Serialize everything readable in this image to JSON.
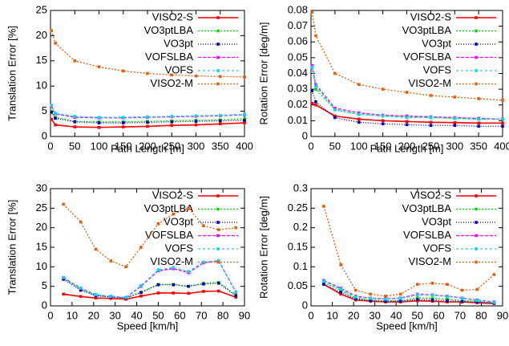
{
  "chart_data": [
    {
      "type": "line",
      "xlabel": "Path Length [m]",
      "ylabel": "Translation Error [%]",
      "x": [
        2,
        10,
        50,
        100,
        150,
        200,
        250,
        300,
        350,
        400
      ],
      "xlim": [
        0,
        400
      ],
      "xticks": [
        0,
        50,
        100,
        150,
        200,
        250,
        300,
        350,
        400
      ],
      "ylim": [
        0,
        25
      ],
      "yticks": [
        0,
        5,
        10,
        15,
        20,
        25
      ],
      "legend": "top-right",
      "series": [
        {
          "name": "VISO2-S",
          "color": "#ff0000",
          "values": [
            3.4,
            2.3,
            1.9,
            1.8,
            1.9,
            2.0,
            2.2,
            2.3,
            2.5,
            2.7
          ]
        },
        {
          "name": "VO3ptLBA",
          "color": "#00e000",
          "values": [
            5.0,
            3.8,
            3.0,
            2.9,
            2.9,
            3.0,
            3.1,
            3.2,
            3.3,
            3.5
          ]
        },
        {
          "name": "VO3pt",
          "color": "#0000b0",
          "values": [
            4.8,
            3.6,
            2.9,
            2.7,
            2.7,
            2.8,
            2.9,
            3.0,
            3.1,
            3.2
          ]
        },
        {
          "name": "VOFSLBA",
          "color": "#ff00ff",
          "values": [
            6.0,
            4.5,
            3.8,
            3.7,
            3.7,
            3.8,
            3.9,
            4.0,
            4.1,
            4.3
          ]
        },
        {
          "name": "VOFS",
          "color": "#00d8ff",
          "values": [
            6.2,
            4.6,
            4.0,
            3.8,
            3.8,
            3.9,
            4.0,
            4.1,
            4.2,
            4.4
          ]
        },
        {
          "name": "VISO2-M",
          "color": "#e06010",
          "values": [
            21,
            18.5,
            15,
            13.8,
            13,
            12.5,
            12.2,
            12,
            11.9,
            11.8
          ]
        }
      ]
    },
    {
      "type": "line",
      "xlabel": "Path Length [m]",
      "ylabel": "Rotation Error [deg/m]",
      "x": [
        2,
        10,
        50,
        100,
        150,
        200,
        250,
        300,
        350,
        400
      ],
      "xlim": [
        0,
        400
      ],
      "xticks": [
        0,
        50,
        100,
        150,
        200,
        250,
        300,
        350,
        400
      ],
      "ylim": [
        0,
        0.08
      ],
      "yticks": [
        0,
        0.01,
        0.02,
        0.03,
        0.04,
        0.05,
        0.06,
        0.07,
        0.08
      ],
      "legend": "top-right",
      "series": [
        {
          "name": "VISO2-S",
          "color": "#ff0000",
          "values": [
            0.021,
            0.02,
            0.013,
            0.011,
            0.01,
            0.0095,
            0.009,
            0.0088,
            0.0085,
            0.0085
          ]
        },
        {
          "name": "VO3ptLBA",
          "color": "#00e000",
          "values": [
            0.045,
            0.03,
            0.017,
            0.014,
            0.013,
            0.0125,
            0.012,
            0.0115,
            0.011,
            0.011
          ]
        },
        {
          "name": "VO3pt",
          "color": "#0000b0",
          "values": [
            0.029,
            0.022,
            0.012,
            0.009,
            0.008,
            0.0075,
            0.007,
            0.007,
            0.0065,
            0.0065
          ]
        },
        {
          "name": "VOFSLBA",
          "color": "#ff00ff",
          "values": [
            0.045,
            0.033,
            0.018,
            0.015,
            0.0135,
            0.013,
            0.0125,
            0.012,
            0.0115,
            0.011
          ]
        },
        {
          "name": "VOFS",
          "color": "#00d8ff",
          "values": [
            0.044,
            0.032,
            0.017,
            0.014,
            0.013,
            0.012,
            0.012,
            0.0115,
            0.011,
            0.011
          ]
        },
        {
          "name": "VISO2-M",
          "color": "#e06010",
          "values": [
            0.079,
            0.064,
            0.04,
            0.033,
            0.03,
            0.028,
            0.026,
            0.025,
            0.024,
            0.023
          ]
        }
      ]
    },
    {
      "type": "line",
      "xlabel": "Speed [km/h]",
      "ylabel": "Translation Error [%]",
      "x": [
        6,
        14,
        21,
        28,
        35,
        42,
        50,
        57,
        64,
        71,
        78,
        86
      ],
      "xlim": [
        0,
        90
      ],
      "xticks": [
        0,
        10,
        20,
        30,
        40,
        50,
        60,
        70,
        80,
        90
      ],
      "ylim": [
        0,
        30
      ],
      "yticks": [
        0,
        5,
        10,
        15,
        20,
        25,
        30
      ],
      "legend": "top-right",
      "series": [
        {
          "name": "VISO2-S",
          "color": "#ff0000",
          "values": [
            3,
            2.4,
            2.0,
            1.9,
            1.7,
            2.5,
            3.3,
            3.3,
            3.2,
            3.7,
            3.8,
            2.2
          ]
        },
        {
          "name": "VO3ptLBA",
          "color": "#00e000",
          "values": [
            7,
            4.2,
            2.7,
            2.3,
            2.0,
            3.5,
            5.5,
            5.5,
            5,
            5.8,
            6,
            2.8
          ]
        },
        {
          "name": "VO3pt",
          "color": "#0000b0",
          "values": [
            6.8,
            4.0,
            2.6,
            2.2,
            2.0,
            3.4,
            5.4,
            5.4,
            5,
            5.6,
            5.8,
            2.6
          ]
        },
        {
          "name": "VOFSLBA",
          "color": "#ff00ff",
          "values": [
            7.2,
            4.5,
            2.8,
            2.4,
            2.1,
            5.0,
            9.0,
            9.5,
            8.5,
            11,
            11.5,
            3.5
          ]
        },
        {
          "name": "VOFS",
          "color": "#00d8ff",
          "values": [
            7.3,
            4.6,
            2.9,
            2.5,
            2.2,
            5.2,
            9.2,
            9.8,
            8.8,
            11.2,
            11.6,
            3.6
          ]
        },
        {
          "name": "VISO2-M",
          "color": "#e06010",
          "values": [
            26,
            21.5,
            14.5,
            11.5,
            10,
            15,
            21,
            23.5,
            25,
            20.5,
            19.5,
            20
          ]
        }
      ]
    },
    {
      "type": "line",
      "xlabel": "Speed [km/h]",
      "ylabel": "Rotation Error [deg/m]",
      "x": [
        6,
        14,
        21,
        28,
        35,
        42,
        50,
        57,
        64,
        71,
        78,
        86
      ],
      "xlim": [
        0,
        90
      ],
      "xticks": [
        0,
        10,
        20,
        30,
        40,
        50,
        60,
        70,
        80,
        90
      ],
      "ylim": [
        0,
        0.3
      ],
      "yticks": [
        0,
        0.05,
        0.1,
        0.15,
        0.2,
        0.25,
        0.3
      ],
      "legend": "top-right",
      "series": [
        {
          "name": "VISO2-S",
          "color": "#ff0000",
          "values": [
            0.055,
            0.03,
            0.015,
            0.012,
            0.01,
            0.01,
            0.013,
            0.012,
            0.01,
            0.01,
            0.008,
            0.006
          ]
        },
        {
          "name": "VO3ptLBA",
          "color": "#00e000",
          "values": [
            0.06,
            0.04,
            0.02,
            0.015,
            0.013,
            0.013,
            0.02,
            0.019,
            0.017,
            0.013,
            0.012,
            0.008
          ]
        },
        {
          "name": "VO3pt",
          "color": "#0000b0",
          "values": [
            0.055,
            0.035,
            0.018,
            0.013,
            0.012,
            0.012,
            0.016,
            0.015,
            0.013,
            0.011,
            0.01,
            0.007
          ]
        },
        {
          "name": "VOFSLBA",
          "color": "#ff00ff",
          "values": [
            0.065,
            0.045,
            0.025,
            0.02,
            0.018,
            0.02,
            0.03,
            0.028,
            0.025,
            0.02,
            0.015,
            0.01
          ]
        },
        {
          "name": "VOFS",
          "color": "#00d8ff",
          "values": [
            0.063,
            0.043,
            0.023,
            0.019,
            0.017,
            0.019,
            0.028,
            0.027,
            0.024,
            0.019,
            0.014,
            0.009
          ]
        },
        {
          "name": "VISO2-M",
          "color": "#e06010",
          "values": [
            0.255,
            0.105,
            0.04,
            0.03,
            0.025,
            0.03,
            0.055,
            0.058,
            0.055,
            0.04,
            0.042,
            0.08
          ]
        }
      ]
    }
  ]
}
